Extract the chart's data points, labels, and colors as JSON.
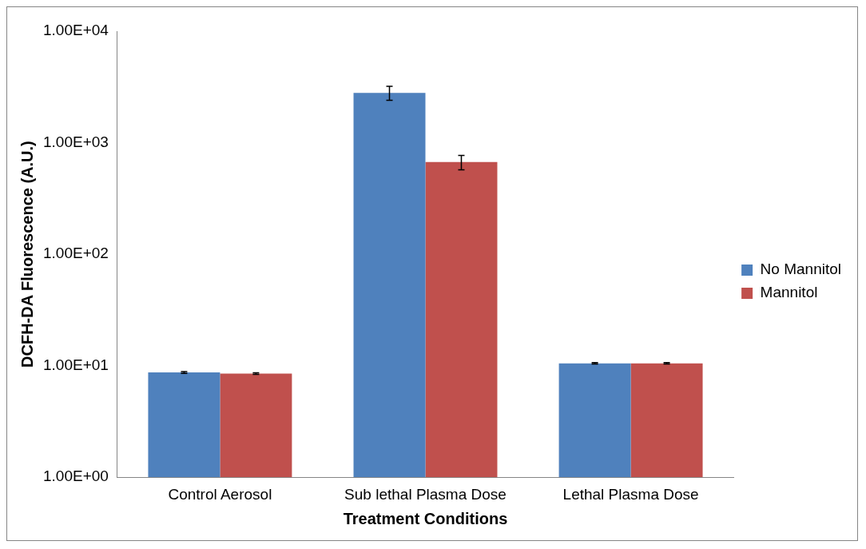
{
  "chart_data": {
    "type": "bar",
    "xlabel": "Treatment Conditions",
    "ylabel": "DCFH-DA Fluorescence (A.U.)",
    "categories": [
      "Control Aerosol",
      "Sub lethal Plasma Dose",
      "Lethal Plasma Dose"
    ],
    "series": [
      {
        "name": "No Mannitol",
        "color": "#4f81bd",
        "values": [
          8.7,
          2800,
          10.5
        ],
        "errors": [
          0.15,
          400,
          0.15
        ]
      },
      {
        "name": "Mannitol",
        "color": "#c0504d",
        "values": [
          8.5,
          670,
          10.5
        ],
        "errors": [
          0.15,
          100,
          0.15
        ]
      }
    ],
    "log": "y",
    "ylim": [
      1,
      10000
    ],
    "yticks": [
      {
        "value": 1,
        "label": "1.00E+00"
      },
      {
        "value": 10,
        "label": "1.00E+01"
      },
      {
        "value": 100,
        "label": "1.00E+02"
      },
      {
        "value": 1000,
        "label": "1.00E+03"
      },
      {
        "value": 10000,
        "label": "1.00E+04"
      }
    ],
    "grid": false,
    "legend": "right"
  }
}
